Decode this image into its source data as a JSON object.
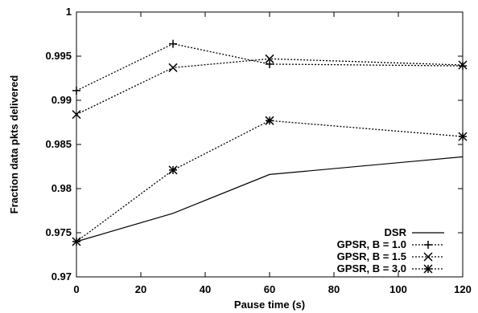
{
  "chart_data": {
    "type": "line",
    "xlabel": "Pause time (s)",
    "ylabel": "Fraction data pkts delivered",
    "xlim": [
      0,
      120
    ],
    "ylim": [
      0.97,
      1.0
    ],
    "x_ticks": [
      "0",
      "20",
      "40",
      "60",
      "80",
      "100",
      "120"
    ],
    "y_ticks": [
      "0.97",
      "0.975",
      "0.98",
      "0.985",
      "0.99",
      "0.995",
      "1"
    ],
    "grid": false,
    "legend_position": "bottom-right",
    "x": [
      0,
      30,
      60,
      120
    ],
    "series": [
      {
        "name": "DSR",
        "values": [
          0.974,
          0.9772,
          0.9816,
          0.9836
        ],
        "marker": "none",
        "dash": "solid"
      },
      {
        "name": "GPSR, B = 1.0",
        "values": [
          0.9911,
          0.9964,
          0.9941,
          0.9939
        ],
        "marker": "plus",
        "dash": "dotted"
      },
      {
        "name": "GPSR, B = 1.5",
        "values": [
          0.9884,
          0.9937,
          0.9947,
          0.994
        ],
        "marker": "cross",
        "dash": "dotted"
      },
      {
        "name": "GPSR, B = 3.0",
        "values": [
          0.974,
          0.9821,
          0.9877,
          0.9859
        ],
        "marker": "star",
        "dash": "dotted"
      }
    ]
  }
}
